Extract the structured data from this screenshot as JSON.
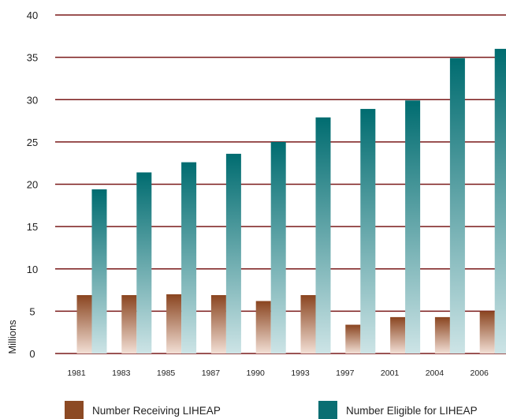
{
  "chart_data": {
    "type": "bar",
    "categories": [
      "1981",
      "1983",
      "1985",
      "1987",
      "1990",
      "1993",
      "1997",
      "2001",
      "2004",
      "2006"
    ],
    "series": [
      {
        "name": "Number Receiving LIHEAP",
        "values": [
          6.9,
          6.9,
          7.0,
          6.9,
          6.2,
          6.9,
          3.4,
          4.3,
          4.3,
          5.0
        ],
        "color": "#8c4a24"
      },
      {
        "name": "Number Eligible for LIHEAP",
        "values": [
          19.4,
          21.4,
          22.6,
          23.6,
          25.0,
          27.9,
          28.9,
          29.9,
          34.9,
          36.0
        ],
        "color": "#0a6e72"
      }
    ],
    "ylabel": "Millions",
    "xlabel": "",
    "ylim": [
      0,
      40
    ],
    "yticks": [
      0,
      5,
      10,
      15,
      20,
      25,
      30,
      35,
      40
    ],
    "grid": true,
    "gridColor": "#7a1a1a",
    "legend": "bottom"
  }
}
